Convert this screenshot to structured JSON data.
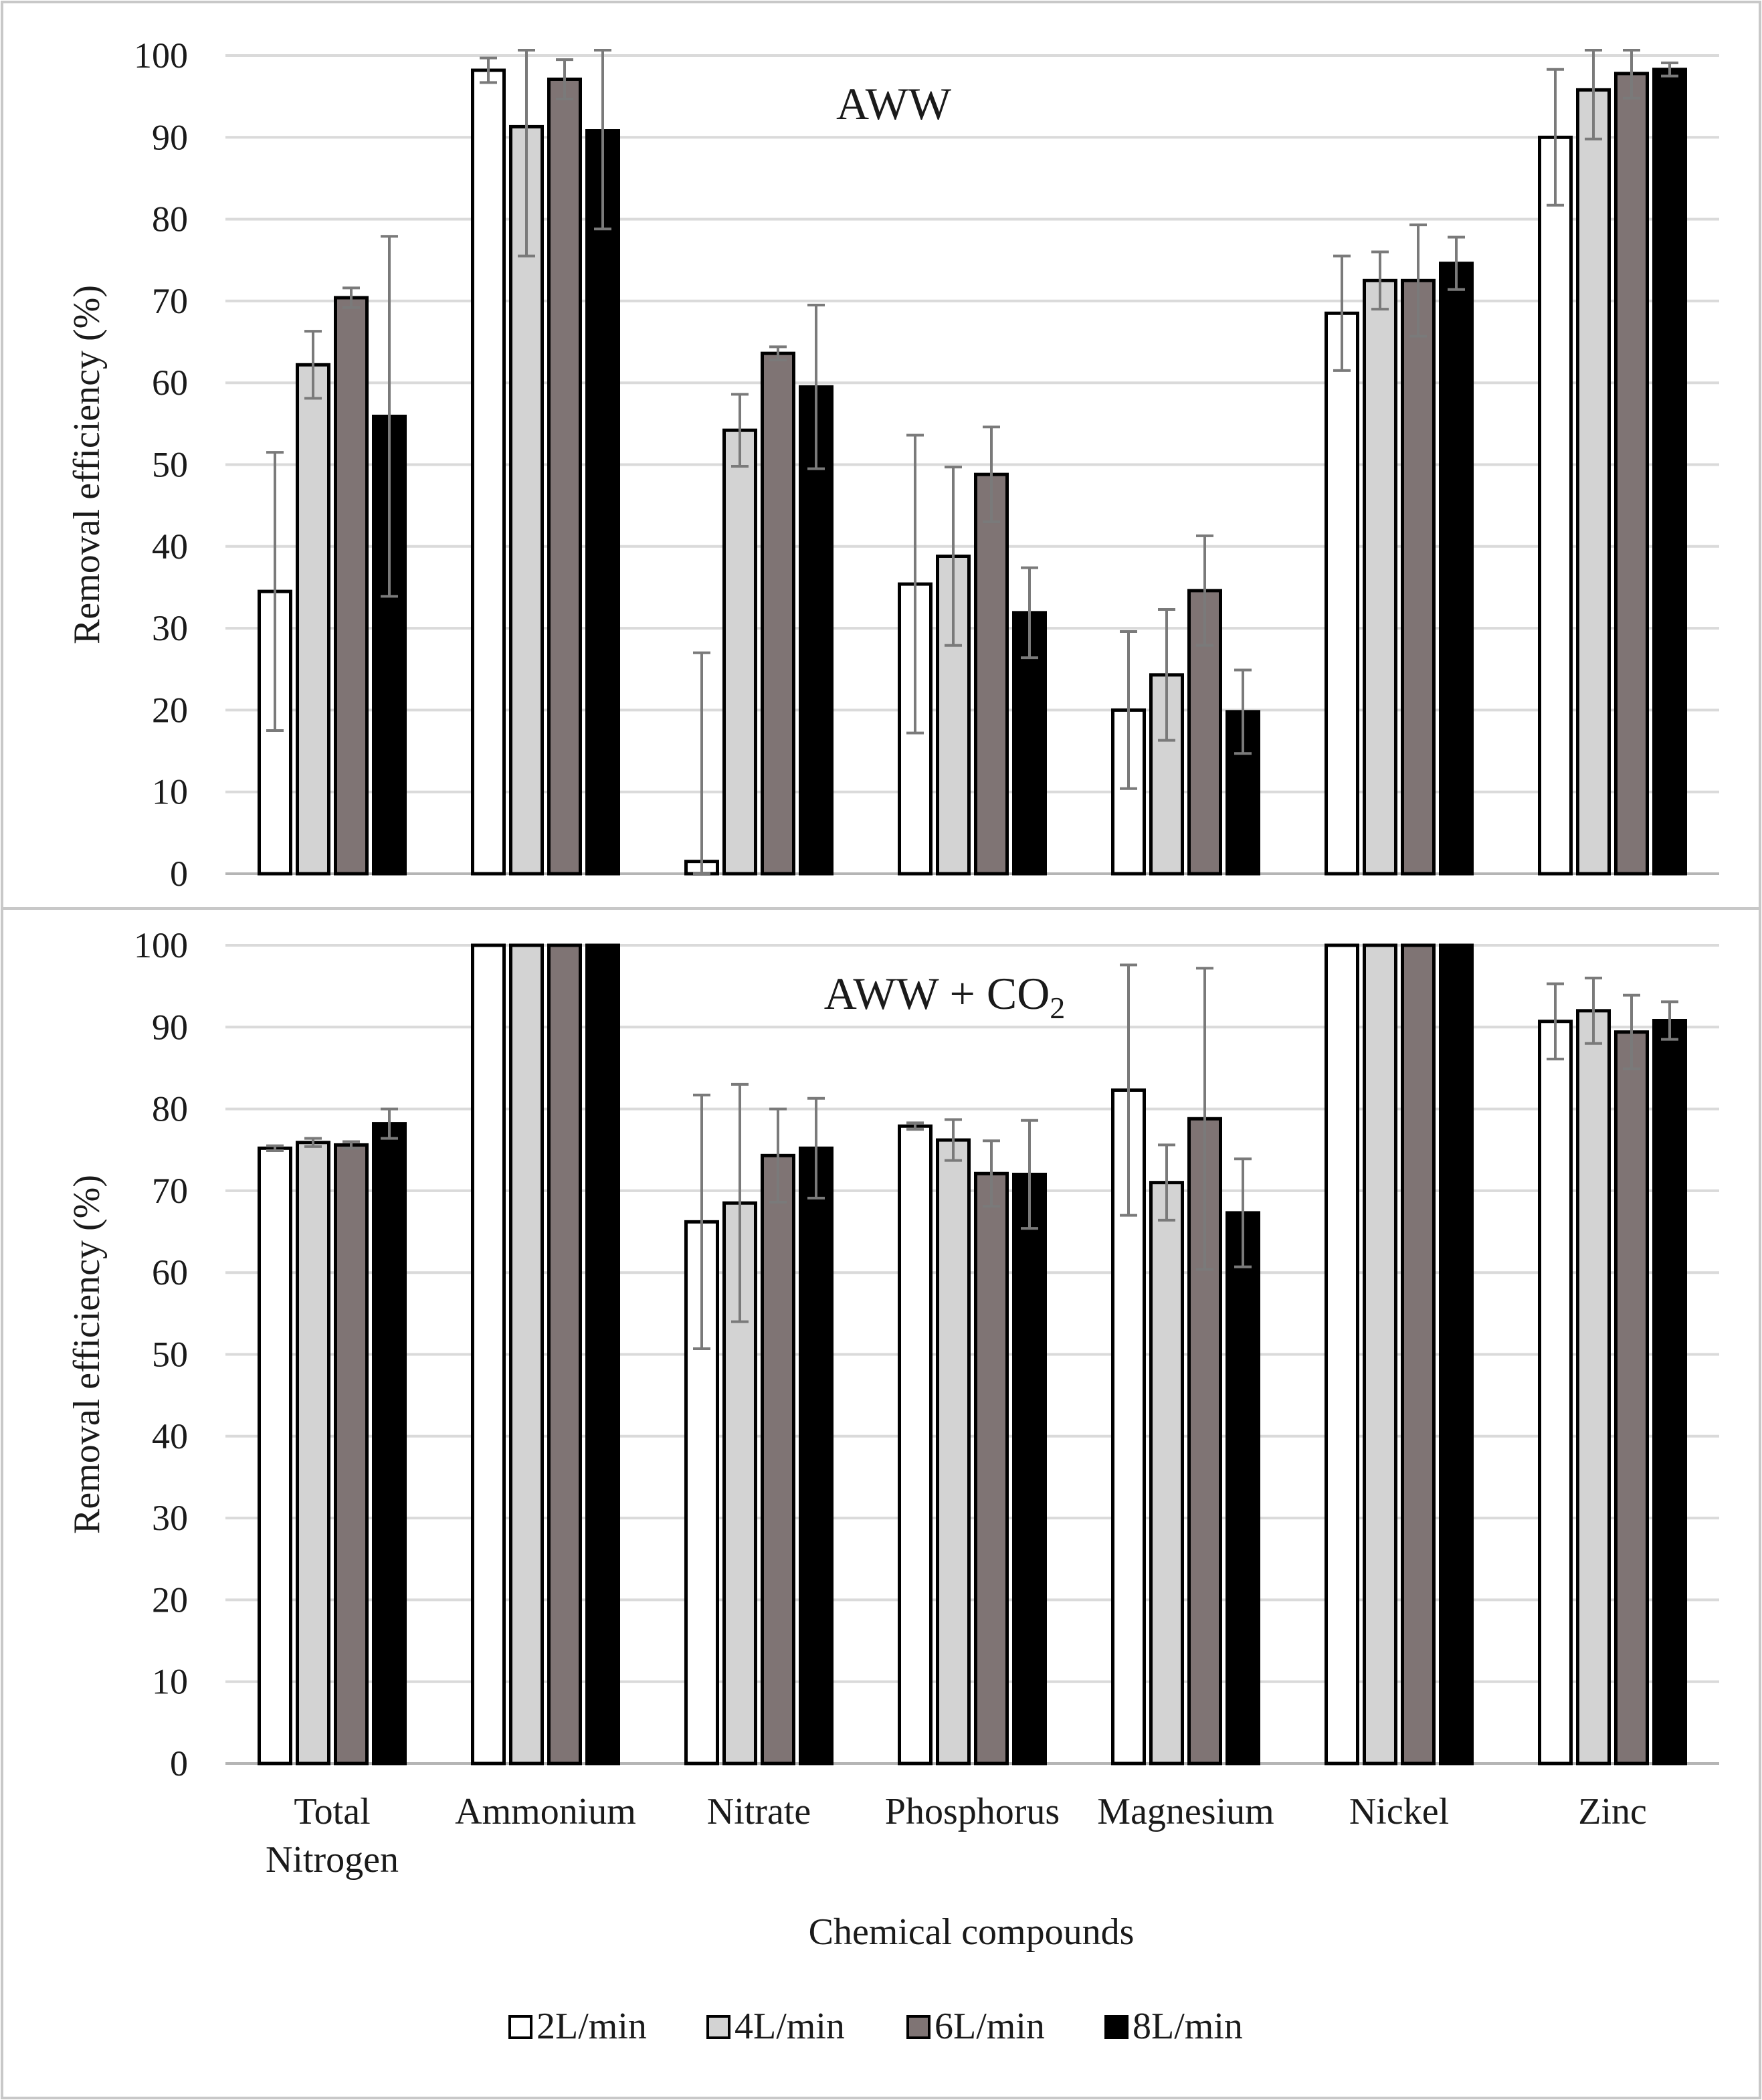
{
  "chart_data": [
    {
      "type": "bar",
      "title": "AWW",
      "title_sub": "",
      "ylabel": "Removal efficiency (%)",
      "xlabel": "",
      "ylim": [
        0,
        100
      ],
      "yticks": [
        0,
        10,
        20,
        30,
        40,
        50,
        60,
        70,
        80,
        90,
        100
      ],
      "grid": true,
      "categories": [
        "Total Nitrogen",
        "Ammonium",
        "Nitrate",
        "Phosphorus",
        "Magnesium",
        "Nickel",
        "Zinc"
      ],
      "series": [
        {
          "name": "2L/min",
          "color": "#ffffff",
          "values": [
            34.5,
            98.2,
            1.5,
            35.4,
            20.0,
            68.5,
            90.0
          ],
          "errors": [
            17.0,
            1.5,
            25.5,
            18.2,
            9.6,
            7.0,
            8.3
          ]
        },
        {
          "name": "4L/min",
          "color": "#d3d3d3",
          "values": [
            62.2,
            91.3,
            54.2,
            38.8,
            24.3,
            72.5,
            95.8
          ],
          "errors": [
            4.1,
            15.8,
            4.4,
            10.9,
            8.0,
            3.5,
            6.0
          ]
        },
        {
          "name": "6L/min",
          "color": "#7f7474",
          "values": [
            70.4,
            97.1,
            63.6,
            48.8,
            34.6,
            72.5,
            97.8
          ],
          "errors": [
            1.2,
            2.4,
            0.8,
            5.8,
            6.7,
            6.8,
            3.0
          ]
        },
        {
          "name": "8L/min",
          "color": "#000000",
          "values": [
            55.9,
            90.8,
            59.5,
            31.9,
            19.8,
            74.6,
            98.3
          ],
          "errors": [
            22.0,
            12.0,
            10.0,
            5.5,
            5.1,
            3.2,
            0.8
          ]
        }
      ]
    },
    {
      "type": "bar",
      "title": "AWW + CO",
      "title_sub": "2",
      "ylabel": "Removal efficiency (%)",
      "xlabel": "Chemical compounds",
      "ylim": [
        0,
        100
      ],
      "yticks": [
        0,
        10,
        20,
        30,
        40,
        50,
        60,
        70,
        80,
        90,
        100
      ],
      "grid": true,
      "categories": [
        "Total Nitrogen",
        "Ammonium",
        "Nitrate",
        "Phosphorus",
        "Magnesium",
        "Nickel",
        "Zinc"
      ],
      "series": [
        {
          "name": "2L/min",
          "color": "#ffffff",
          "values": [
            75.2,
            100,
            66.2,
            77.9,
            82.3,
            100,
            90.7
          ],
          "errors": [
            0.3,
            0,
            15.5,
            0.4,
            15.3,
            0,
            4.6
          ]
        },
        {
          "name": "4L/min",
          "color": "#d3d3d3",
          "values": [
            75.9,
            100,
            68.5,
            76.2,
            71.0,
            100,
            92.0
          ],
          "errors": [
            0.5,
            0,
            14.5,
            2.5,
            4.6,
            0,
            4.0
          ]
        },
        {
          "name": "6L/min",
          "color": "#7f7474",
          "values": [
            75.6,
            100,
            74.3,
            72.1,
            78.8,
            100,
            89.4
          ],
          "errors": [
            0.4,
            0,
            5.7,
            4.0,
            18.4,
            0,
            4.5
          ]
        },
        {
          "name": "8L/min",
          "color": "#000000",
          "values": [
            78.2,
            100,
            75.2,
            72.0,
            67.3,
            100,
            90.8
          ],
          "errors": [
            1.8,
            0,
            6.1,
            6.6,
            6.6,
            0,
            2.3
          ]
        }
      ]
    }
  ],
  "legend": {
    "position": "bottom-center",
    "items": [
      {
        "label": "2L/min",
        "color": "#ffffff"
      },
      {
        "label": "4L/min",
        "color": "#d3d3d3"
      },
      {
        "label": "6L/min",
        "color": "#7f7474"
      },
      {
        "label": "8L/min",
        "color": "#000000"
      }
    ]
  },
  "category_display": [
    [
      "Total",
      "Nitrogen"
    ],
    [
      "Ammonium"
    ],
    [
      "Nitrate"
    ],
    [
      "Phosphorus"
    ],
    [
      "Magnesium"
    ],
    [
      "Nickel"
    ],
    [
      "Zinc"
    ]
  ]
}
